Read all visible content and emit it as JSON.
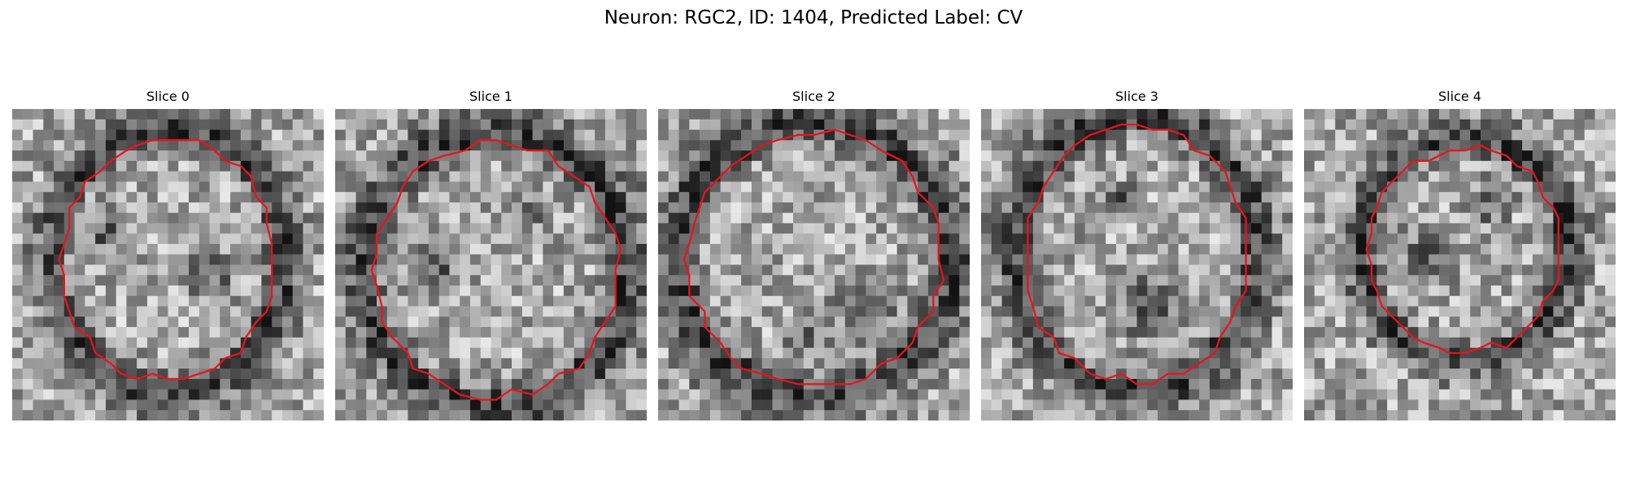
{
  "figure": {
    "title": "Neuron: RGC2, ID: 1404, Predicted Label: CV",
    "contour_color": "#e8141c"
  },
  "panels": [
    {
      "title": "Slice 0"
    },
    {
      "title": "Slice 1"
    },
    {
      "title": "Slice 2"
    },
    {
      "title": "Slice 3"
    },
    {
      "title": "Slice 4"
    }
  ]
}
